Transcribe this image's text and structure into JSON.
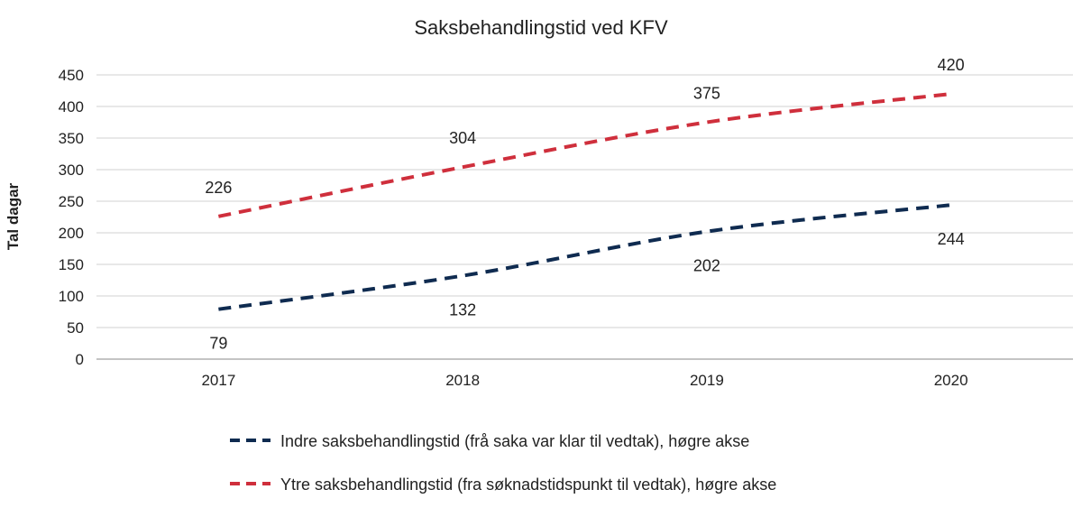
{
  "chart_data": {
    "type": "line",
    "title": "Saksbehandlingstid ved KFV",
    "xlabel": "",
    "ylabel": "Tal dagar",
    "categories": [
      "2017",
      "2018",
      "2019",
      "2020"
    ],
    "ylim": [
      0,
      450
    ],
    "yticks": [
      0,
      50,
      100,
      150,
      200,
      250,
      300,
      350,
      400,
      450
    ],
    "grid": true,
    "legend_position": "bottom",
    "series": [
      {
        "name": "Indre saksbehandlingstid (frå saka var klar til vedtak), høgre akse",
        "values": [
          79,
          132,
          202,
          244
        ],
        "color": "#0f2b50",
        "style": "dashed",
        "label_position": "below"
      },
      {
        "name": "Ytre saksbehandlingstid (fra søknadstidspunkt til vedtak), høgre akse",
        "values": [
          226,
          304,
          375,
          420
        ],
        "color": "#cf2f3c",
        "style": "dashed",
        "label_position": "above"
      }
    ]
  }
}
